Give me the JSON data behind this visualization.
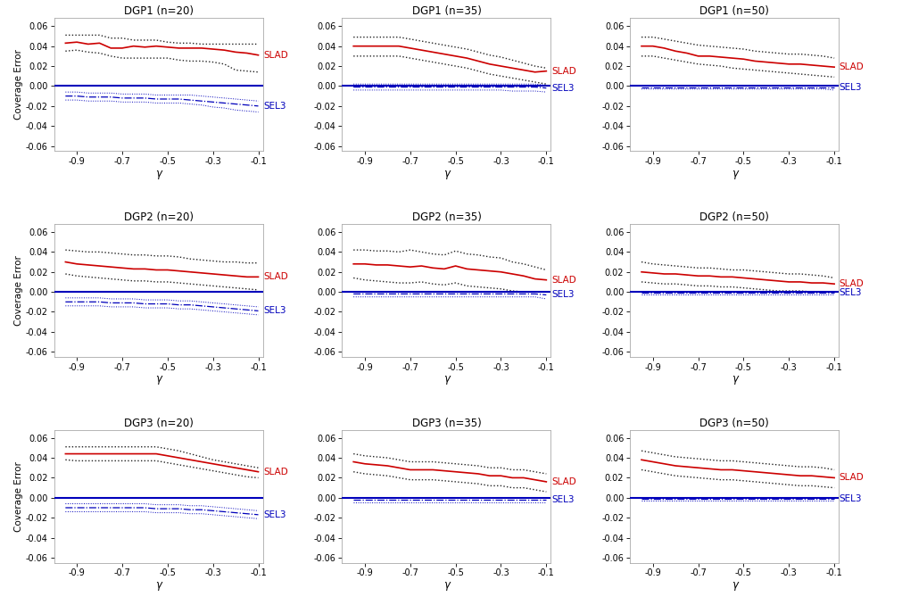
{
  "gamma": [
    -0.95,
    -0.9,
    -0.85,
    -0.8,
    -0.75,
    -0.7,
    -0.65,
    -0.6,
    -0.55,
    -0.5,
    -0.45,
    -0.4,
    -0.35,
    -0.3,
    -0.25,
    -0.2,
    -0.15,
    -0.1
  ],
  "titles": [
    [
      "DGP1 (n=20)",
      "DGP1 (n=35)",
      "DGP1 (n=50)"
    ],
    [
      "DGP2 (n=20)",
      "DGP2 (n=35)",
      "DGP2 (n=50)"
    ],
    [
      "DGP3 (n=20)",
      "DGP3 (n=35)",
      "DGP3 (n=50)"
    ]
  ],
  "slad_lines": {
    "DGP1_n20": [
      0.043,
      0.044,
      0.042,
      0.043,
      0.038,
      0.038,
      0.04,
      0.039,
      0.04,
      0.039,
      0.038,
      0.038,
      0.038,
      0.037,
      0.036,
      0.034,
      0.033,
      0.031
    ],
    "DGP1_n35": [
      0.04,
      0.04,
      0.04,
      0.04,
      0.04,
      0.038,
      0.036,
      0.034,
      0.032,
      0.03,
      0.028,
      0.025,
      0.022,
      0.02,
      0.018,
      0.016,
      0.014,
      0.015
    ],
    "DGP1_n50": [
      0.04,
      0.04,
      0.038,
      0.035,
      0.033,
      0.03,
      0.03,
      0.029,
      0.028,
      0.027,
      0.025,
      0.024,
      0.023,
      0.022,
      0.022,
      0.021,
      0.02,
      0.019
    ],
    "DGP2_n20": [
      0.03,
      0.028,
      0.027,
      0.026,
      0.025,
      0.024,
      0.023,
      0.023,
      0.022,
      0.022,
      0.021,
      0.02,
      0.019,
      0.018,
      0.017,
      0.016,
      0.015,
      0.015
    ],
    "DGP2_n35": [
      0.028,
      0.028,
      0.027,
      0.027,
      0.026,
      0.025,
      0.026,
      0.024,
      0.023,
      0.026,
      0.023,
      0.022,
      0.021,
      0.02,
      0.018,
      0.016,
      0.013,
      0.012
    ],
    "DGP2_n50": [
      0.02,
      0.019,
      0.018,
      0.018,
      0.017,
      0.016,
      0.016,
      0.015,
      0.015,
      0.014,
      0.013,
      0.012,
      0.011,
      0.01,
      0.01,
      0.009,
      0.009,
      0.008
    ],
    "DGP3_n20": [
      0.044,
      0.044,
      0.044,
      0.044,
      0.044,
      0.044,
      0.044,
      0.044,
      0.044,
      0.042,
      0.04,
      0.038,
      0.036,
      0.034,
      0.032,
      0.03,
      0.028,
      0.026
    ],
    "DGP3_n35": [
      0.036,
      0.034,
      0.033,
      0.032,
      0.03,
      0.028,
      0.028,
      0.028,
      0.027,
      0.026,
      0.025,
      0.024,
      0.022,
      0.022,
      0.02,
      0.02,
      0.018,
      0.016
    ],
    "DGP3_n50": [
      0.038,
      0.036,
      0.034,
      0.032,
      0.031,
      0.03,
      0.029,
      0.028,
      0.028,
      0.027,
      0.026,
      0.025,
      0.024,
      0.023,
      0.022,
      0.022,
      0.021,
      0.02
    ]
  },
  "slad_upper": {
    "DGP1_n20": [
      0.051,
      0.051,
      0.051,
      0.051,
      0.048,
      0.048,
      0.046,
      0.046,
      0.046,
      0.044,
      0.043,
      0.043,
      0.042,
      0.042,
      0.042,
      0.042,
      0.042,
      0.042
    ],
    "DGP1_n35": [
      0.049,
      0.049,
      0.049,
      0.049,
      0.049,
      0.047,
      0.045,
      0.043,
      0.041,
      0.039,
      0.037,
      0.034,
      0.031,
      0.029,
      0.026,
      0.023,
      0.02,
      0.018
    ],
    "DGP1_n50": [
      0.049,
      0.049,
      0.047,
      0.045,
      0.043,
      0.041,
      0.04,
      0.039,
      0.038,
      0.037,
      0.035,
      0.034,
      0.033,
      0.032,
      0.032,
      0.031,
      0.03,
      0.028
    ],
    "DGP2_n20": [
      0.042,
      0.041,
      0.04,
      0.04,
      0.039,
      0.038,
      0.037,
      0.037,
      0.036,
      0.036,
      0.035,
      0.033,
      0.032,
      0.031,
      0.03,
      0.03,
      0.029,
      0.029
    ],
    "DGP2_n35": [
      0.042,
      0.042,
      0.041,
      0.041,
      0.04,
      0.042,
      0.04,
      0.038,
      0.037,
      0.041,
      0.038,
      0.037,
      0.035,
      0.034,
      0.03,
      0.028,
      0.025,
      0.022
    ],
    "DGP2_n50": [
      0.03,
      0.028,
      0.027,
      0.026,
      0.025,
      0.024,
      0.024,
      0.023,
      0.022,
      0.022,
      0.021,
      0.02,
      0.019,
      0.018,
      0.018,
      0.017,
      0.016,
      0.014
    ],
    "DGP3_n20": [
      0.051,
      0.051,
      0.051,
      0.051,
      0.051,
      0.051,
      0.051,
      0.051,
      0.051,
      0.049,
      0.047,
      0.044,
      0.041,
      0.038,
      0.036,
      0.034,
      0.032,
      0.03
    ],
    "DGP3_n35": [
      0.044,
      0.042,
      0.041,
      0.04,
      0.038,
      0.036,
      0.036,
      0.036,
      0.035,
      0.034,
      0.033,
      0.032,
      0.03,
      0.03,
      0.028,
      0.028,
      0.026,
      0.024
    ],
    "DGP3_n50": [
      0.047,
      0.045,
      0.043,
      0.041,
      0.04,
      0.039,
      0.038,
      0.037,
      0.037,
      0.036,
      0.035,
      0.034,
      0.033,
      0.032,
      0.031,
      0.031,
      0.03,
      0.028
    ]
  },
  "slad_lower": {
    "DGP1_n20": [
      0.035,
      0.036,
      0.034,
      0.033,
      0.03,
      0.028,
      0.028,
      0.028,
      0.028,
      0.028,
      0.026,
      0.025,
      0.025,
      0.024,
      0.022,
      0.016,
      0.015,
      0.014
    ],
    "DGP1_n35": [
      0.03,
      0.03,
      0.03,
      0.03,
      0.03,
      0.028,
      0.026,
      0.024,
      0.022,
      0.02,
      0.018,
      0.015,
      0.012,
      0.01,
      0.008,
      0.006,
      0.004,
      0.002
    ],
    "DGP1_n50": [
      0.03,
      0.03,
      0.028,
      0.026,
      0.024,
      0.022,
      0.021,
      0.02,
      0.018,
      0.017,
      0.016,
      0.015,
      0.014,
      0.013,
      0.012,
      0.011,
      0.01,
      0.009
    ],
    "DGP2_n20": [
      0.018,
      0.016,
      0.015,
      0.014,
      0.013,
      0.012,
      0.011,
      0.011,
      0.01,
      0.01,
      0.009,
      0.008,
      0.007,
      0.006,
      0.005,
      0.004,
      0.003,
      0.002
    ],
    "DGP2_n35": [
      0.014,
      0.012,
      0.011,
      0.01,
      0.009,
      0.009,
      0.01,
      0.008,
      0.007,
      0.009,
      0.006,
      0.005,
      0.004,
      0.003,
      0.001,
      0.0,
      0.0,
      0.0
    ],
    "DGP2_n50": [
      0.01,
      0.009,
      0.008,
      0.008,
      0.007,
      0.006,
      0.006,
      0.005,
      0.005,
      0.004,
      0.003,
      0.002,
      0.001,
      0.001,
      0.001,
      0.0,
      0.0,
      0.0
    ],
    "DGP3_n20": [
      0.038,
      0.037,
      0.037,
      0.037,
      0.037,
      0.037,
      0.037,
      0.037,
      0.037,
      0.035,
      0.033,
      0.031,
      0.029,
      0.027,
      0.025,
      0.023,
      0.021,
      0.02
    ],
    "DGP3_n35": [
      0.026,
      0.024,
      0.023,
      0.022,
      0.02,
      0.018,
      0.018,
      0.018,
      0.017,
      0.016,
      0.015,
      0.014,
      0.012,
      0.012,
      0.01,
      0.01,
      0.008,
      0.006
    ],
    "DGP3_n50": [
      0.028,
      0.026,
      0.024,
      0.022,
      0.021,
      0.02,
      0.019,
      0.018,
      0.018,
      0.017,
      0.016,
      0.015,
      0.014,
      0.013,
      0.012,
      0.012,
      0.011,
      0.01
    ]
  },
  "sel3_lines": {
    "DGP1_n20": [
      -0.01,
      -0.01,
      -0.011,
      -0.011,
      -0.011,
      -0.012,
      -0.012,
      -0.012,
      -0.013,
      -0.013,
      -0.013,
      -0.014,
      -0.015,
      -0.016,
      -0.017,
      -0.018,
      -0.019,
      -0.02
    ],
    "DGP1_n35": [
      -0.001,
      -0.001,
      -0.001,
      -0.001,
      -0.001,
      -0.001,
      -0.001,
      -0.001,
      -0.001,
      -0.001,
      -0.001,
      -0.001,
      -0.001,
      -0.001,
      -0.001,
      -0.001,
      -0.001,
      -0.002
    ],
    "DGP1_n50": [
      -0.001,
      -0.001,
      -0.001,
      -0.001,
      -0.001,
      -0.001,
      -0.001,
      -0.001,
      -0.001,
      -0.001,
      -0.001,
      -0.001,
      -0.001,
      -0.001,
      -0.001,
      -0.001,
      -0.001,
      -0.001
    ],
    "DGP2_n20": [
      -0.01,
      -0.01,
      -0.01,
      -0.01,
      -0.011,
      -0.011,
      -0.011,
      -0.012,
      -0.012,
      -0.012,
      -0.013,
      -0.013,
      -0.014,
      -0.015,
      -0.016,
      -0.017,
      -0.018,
      -0.019
    ],
    "DGP2_n35": [
      -0.002,
      -0.002,
      -0.002,
      -0.002,
      -0.002,
      -0.002,
      -0.002,
      -0.002,
      -0.002,
      -0.002,
      -0.002,
      -0.002,
      -0.002,
      -0.002,
      -0.002,
      -0.002,
      -0.002,
      -0.003
    ],
    "DGP2_n50": [
      -0.001,
      -0.001,
      -0.001,
      -0.001,
      -0.001,
      -0.001,
      -0.001,
      -0.001,
      -0.001,
      -0.001,
      -0.001,
      -0.001,
      -0.001,
      -0.001,
      -0.001,
      -0.001,
      -0.001,
      -0.001
    ],
    "DGP3_n20": [
      -0.01,
      -0.01,
      -0.01,
      -0.01,
      -0.01,
      -0.01,
      -0.01,
      -0.01,
      -0.011,
      -0.011,
      -0.011,
      -0.012,
      -0.012,
      -0.013,
      -0.014,
      -0.015,
      -0.016,
      -0.017
    ],
    "DGP3_n35": [
      -0.002,
      -0.002,
      -0.002,
      -0.002,
      -0.002,
      -0.002,
      -0.002,
      -0.002,
      -0.002,
      -0.002,
      -0.002,
      -0.002,
      -0.002,
      -0.002,
      -0.002,
      -0.002,
      -0.002,
      -0.002
    ],
    "DGP3_n50": [
      -0.001,
      -0.001,
      -0.001,
      -0.001,
      -0.001,
      -0.001,
      -0.001,
      -0.001,
      -0.001,
      -0.001,
      -0.001,
      -0.001,
      -0.001,
      -0.001,
      -0.001,
      -0.001,
      -0.001,
      -0.001
    ]
  },
  "sel3_upper": {
    "DGP1_n20": [
      -0.006,
      -0.006,
      -0.007,
      -0.007,
      -0.007,
      -0.008,
      -0.008,
      -0.008,
      -0.009,
      -0.009,
      -0.009,
      -0.009,
      -0.01,
      -0.011,
      -0.012,
      -0.013,
      -0.014,
      -0.015
    ],
    "DGP1_n35": [
      0.002,
      0.002,
      0.002,
      0.002,
      0.002,
      0.002,
      0.002,
      0.002,
      0.002,
      0.002,
      0.002,
      0.002,
      0.002,
      0.002,
      0.002,
      0.002,
      0.002,
      0.001
    ],
    "DGP1_n50": [
      0.001,
      0.001,
      0.001,
      0.001,
      0.001,
      0.001,
      0.001,
      0.001,
      0.001,
      0.001,
      0.001,
      0.001,
      0.001,
      0.001,
      0.001,
      0.001,
      0.001,
      0.001
    ],
    "DGP2_n20": [
      -0.006,
      -0.006,
      -0.006,
      -0.006,
      -0.007,
      -0.007,
      -0.007,
      -0.008,
      -0.008,
      -0.008,
      -0.009,
      -0.009,
      -0.01,
      -0.011,
      -0.012,
      -0.013,
      -0.014,
      -0.015
    ],
    "DGP2_n35": [
      0.001,
      0.001,
      0.001,
      0.001,
      0.001,
      0.001,
      0.001,
      0.001,
      0.001,
      0.001,
      0.001,
      0.001,
      0.001,
      0.001,
      0.001,
      0.001,
      0.001,
      0.001
    ],
    "DGP2_n50": [
      0.001,
      0.001,
      0.001,
      0.001,
      0.001,
      0.001,
      0.001,
      0.001,
      0.001,
      0.001,
      0.001,
      0.001,
      0.001,
      0.001,
      0.001,
      0.001,
      0.001,
      0.001
    ],
    "DGP3_n20": [
      -0.006,
      -0.006,
      -0.006,
      -0.006,
      -0.006,
      -0.006,
      -0.006,
      -0.006,
      -0.007,
      -0.007,
      -0.007,
      -0.008,
      -0.008,
      -0.009,
      -0.01,
      -0.011,
      -0.012,
      -0.013
    ],
    "DGP3_n35": [
      0.001,
      0.001,
      0.001,
      0.001,
      0.001,
      0.001,
      0.001,
      0.001,
      0.001,
      0.001,
      0.001,
      0.001,
      0.001,
      0.001,
      0.001,
      0.001,
      0.001,
      0.001
    ],
    "DGP3_n50": [
      0.001,
      0.001,
      0.001,
      0.001,
      0.001,
      0.001,
      0.001,
      0.001,
      0.001,
      0.001,
      0.001,
      0.001,
      0.001,
      0.001,
      0.001,
      0.001,
      0.001,
      0.001
    ]
  },
  "sel3_lower": {
    "DGP1_n20": [
      -0.014,
      -0.014,
      -0.015,
      -0.015,
      -0.015,
      -0.016,
      -0.016,
      -0.016,
      -0.017,
      -0.017,
      -0.017,
      -0.018,
      -0.019,
      -0.021,
      -0.022,
      -0.024,
      -0.025,
      -0.026
    ],
    "DGP1_n35": [
      -0.004,
      -0.004,
      -0.004,
      -0.004,
      -0.004,
      -0.004,
      -0.004,
      -0.004,
      -0.004,
      -0.004,
      -0.004,
      -0.004,
      -0.004,
      -0.004,
      -0.005,
      -0.005,
      -0.005,
      -0.006
    ],
    "DGP1_n50": [
      -0.003,
      -0.003,
      -0.003,
      -0.003,
      -0.003,
      -0.003,
      -0.003,
      -0.003,
      -0.003,
      -0.003,
      -0.003,
      -0.003,
      -0.003,
      -0.003,
      -0.003,
      -0.003,
      -0.003,
      -0.004
    ],
    "DGP2_n20": [
      -0.014,
      -0.014,
      -0.014,
      -0.014,
      -0.015,
      -0.015,
      -0.015,
      -0.016,
      -0.016,
      -0.016,
      -0.017,
      -0.017,
      -0.018,
      -0.019,
      -0.02,
      -0.021,
      -0.022,
      -0.023
    ],
    "DGP2_n35": [
      -0.005,
      -0.005,
      -0.005,
      -0.005,
      -0.005,
      -0.005,
      -0.005,
      -0.005,
      -0.005,
      -0.005,
      -0.005,
      -0.005,
      -0.005,
      -0.005,
      -0.005,
      -0.005,
      -0.005,
      -0.007
    ],
    "DGP2_n50": [
      -0.003,
      -0.003,
      -0.003,
      -0.003,
      -0.003,
      -0.003,
      -0.003,
      -0.003,
      -0.003,
      -0.003,
      -0.003,
      -0.003,
      -0.003,
      -0.003,
      -0.003,
      -0.003,
      -0.003,
      -0.003
    ],
    "DGP3_n20": [
      -0.014,
      -0.014,
      -0.014,
      -0.014,
      -0.014,
      -0.014,
      -0.014,
      -0.014,
      -0.015,
      -0.015,
      -0.015,
      -0.016,
      -0.016,
      -0.017,
      -0.018,
      -0.019,
      -0.02,
      -0.021
    ],
    "DGP3_n35": [
      -0.005,
      -0.005,
      -0.005,
      -0.005,
      -0.005,
      -0.005,
      -0.005,
      -0.005,
      -0.005,
      -0.005,
      -0.005,
      -0.005,
      -0.005,
      -0.005,
      -0.005,
      -0.005,
      -0.005,
      -0.005
    ],
    "DGP3_n50": [
      -0.003,
      -0.003,
      -0.003,
      -0.003,
      -0.003,
      -0.003,
      -0.003,
      -0.003,
      -0.003,
      -0.003,
      -0.003,
      -0.003,
      -0.003,
      -0.003,
      -0.003,
      -0.003,
      -0.003,
      -0.003
    ]
  },
  "zero_line_color": "#0000bb",
  "slad_color": "#cc0000",
  "sel3_color": "#0000bb",
  "ci_black_color": "#222222",
  "ylabel": "Coverage Error",
  "xlabel": "γ",
  "ylim": [
    -0.065,
    0.068
  ],
  "yticks": [
    -0.06,
    -0.04,
    -0.02,
    0.0,
    0.02,
    0.04,
    0.06
  ],
  "xticks": [
    -0.9,
    -0.7,
    -0.5,
    -0.3,
    -0.1
  ],
  "background_color": "white",
  "title_fontsize": 8.5,
  "label_fontsize": 7.5,
  "tick_fontsize": 7,
  "annotation_fontsize": 7.5
}
